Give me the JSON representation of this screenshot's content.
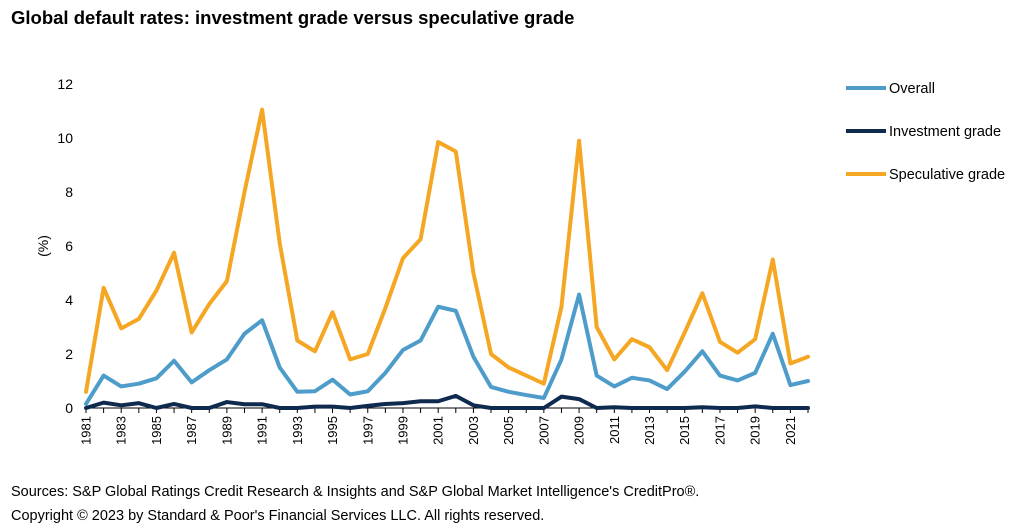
{
  "title": "Global default rates: investment grade versus speculative grade",
  "footer": {
    "sources": "Sources: S&P Global Ratings Credit Research & Insights and S&P Global Market Intelligence's CreditPro®.",
    "copyright": "Copyright © 2023 by Standard & Poor's Financial Services LLC. All rights reserved."
  },
  "chart_data": {
    "type": "line",
    "title": "Global default rates: investment grade versus speculative grade",
    "ylabel": "(%)",
    "xlabel": "",
    "ylim": [
      0,
      12
    ],
    "yticks": [
      "0",
      "2",
      "4",
      "6",
      "8",
      "10",
      "12"
    ],
    "x": [
      1981,
      1982,
      1983,
      1984,
      1985,
      1986,
      1987,
      1988,
      1989,
      1990,
      1991,
      1992,
      1993,
      1994,
      1995,
      1996,
      1997,
      1998,
      1999,
      2000,
      2001,
      2002,
      2003,
      2004,
      2005,
      2006,
      2007,
      2008,
      2009,
      2010,
      2011,
      2012,
      2013,
      2014,
      2015,
      2016,
      2017,
      2018,
      2019,
      2020,
      2021,
      2022
    ],
    "xtick_labels": [
      "1981",
      "1983",
      "1985",
      "1987",
      "1989",
      "1991",
      "1993",
      "1995",
      "1997",
      "1999",
      "2001",
      "2003",
      "2005",
      "2007",
      "2009",
      "2011",
      "2013",
      "2015",
      "2017",
      "2019",
      "2021"
    ],
    "legend_position": "right",
    "grid": false,
    "series": [
      {
        "name": "Overall",
        "color": "#4e9cc9",
        "values": [
          0.15,
          1.2,
          0.8,
          0.9,
          1.1,
          1.75,
          0.95,
          1.4,
          1.8,
          2.75,
          3.25,
          1.5,
          0.6,
          0.62,
          1.05,
          0.5,
          0.62,
          1.3,
          2.15,
          2.5,
          3.75,
          3.6,
          1.9,
          0.78,
          0.6,
          0.48,
          0.37,
          1.8,
          4.2,
          1.2,
          0.8,
          1.12,
          1.02,
          0.7,
          1.35,
          2.1,
          1.2,
          1.02,
          1.3,
          2.75,
          0.85,
          1.0
        ]
      },
      {
        "name": "Investment grade",
        "color": "#0f2a4f",
        "values": [
          0.0,
          0.2,
          0.1,
          0.18,
          0.0,
          0.15,
          0.0,
          0.0,
          0.22,
          0.14,
          0.14,
          0.0,
          0.0,
          0.05,
          0.05,
          0.0,
          0.08,
          0.15,
          0.18,
          0.25,
          0.25,
          0.45,
          0.1,
          0.0,
          0.0,
          0.0,
          0.0,
          0.42,
          0.33,
          0.0,
          0.03,
          0.0,
          0.0,
          0.0,
          0.0,
          0.03,
          0.0,
          0.0,
          0.06,
          0.0,
          0.0,
          0.0
        ]
      },
      {
        "name": "Speculative grade",
        "color": "#f5a623",
        "values": [
          0.6,
          4.45,
          2.95,
          3.3,
          4.35,
          5.75,
          2.8,
          3.85,
          4.7,
          8.0,
          11.05,
          6.1,
          2.5,
          2.1,
          3.55,
          1.8,
          2.0,
          3.7,
          5.55,
          6.25,
          9.85,
          9.5,
          5.0,
          2.0,
          1.5,
          1.2,
          0.9,
          3.75,
          9.9,
          3.0,
          1.8,
          2.55,
          2.25,
          1.4,
          2.8,
          4.25,
          2.45,
          2.05,
          2.55,
          5.5,
          1.65,
          1.9
        ]
      }
    ]
  }
}
